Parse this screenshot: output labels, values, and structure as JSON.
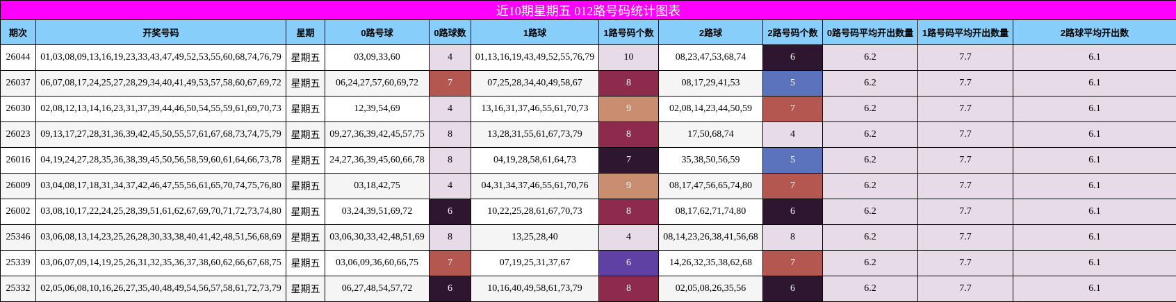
{
  "title": "近10期星期五 012路号码统计图表",
  "headers": {
    "period": "期次",
    "numbers": "开奖号码",
    "weekday": "星期",
    "road0": "0路号球",
    "road0_count": "0路球数",
    "road1": "1路球",
    "road1_count": "1路号码个数",
    "road2": "2路球",
    "road2_count": "2路号码个数",
    "avg0": "0路号码平均开出数量",
    "avg1": "1路号码平均开出数量",
    "avg2": "2路球平均开出数"
  },
  "count_colors": {
    "4": "#e6dbe6",
    "5": "#5b73bd",
    "6": "#2e1630",
    "7": "#b35750",
    "8": "#8e2a4e",
    "9": "#c98d6f",
    "10": "#e6dbe6",
    "6_r1": "#5e41a3"
  },
  "rows": [
    {
      "period": "26044",
      "numbers": "01,03,08,09,13,16,19,23,33,43,47,49,52,53,55,60,68,74,76,79",
      "weekday": "星期五",
      "road0": "03,09,33,60",
      "road0_count": "4",
      "road0_color": "#e6dbe6",
      "road1": "01,13,16,19,43,49,52,55,76,79",
      "road1_count": "10",
      "road1_color": "#e6dbe6",
      "road2": "08,23,47,53,68,74",
      "road2_count": "6",
      "road2_color": "#2e1630",
      "avg0": "6.2",
      "avg1": "7.7",
      "avg2": "6.1"
    },
    {
      "period": "26037",
      "numbers": "06,07,08,17,24,25,27,28,29,34,40,41,49,53,57,58,60,67,69,72",
      "weekday": "星期五",
      "road0": "06,24,27,57,60,69,72",
      "road0_count": "7",
      "road0_color": "#b35750",
      "road1": "07,25,28,34,40,49,58,67",
      "road1_count": "8",
      "road1_color": "#8e2a4e",
      "road2": "08,17,29,41,53",
      "road2_count": "5",
      "road2_color": "#5b73bd",
      "avg0": "6.2",
      "avg1": "7.7",
      "avg2": "6.1"
    },
    {
      "period": "26030",
      "numbers": "02,08,12,13,14,16,23,31,37,39,44,46,50,54,55,59,61,69,70,73",
      "weekday": "星期五",
      "road0": "12,39,54,69",
      "road0_count": "4",
      "road0_color": "#e6dbe6",
      "road1": "13,16,31,37,46,55,61,70,73",
      "road1_count": "9",
      "road1_color": "#c98d6f",
      "road2": "02,08,14,23,44,50,59",
      "road2_count": "7",
      "road2_color": "#b35750",
      "avg0": "6.2",
      "avg1": "7.7",
      "avg2": "6.1"
    },
    {
      "period": "26023",
      "numbers": "09,13,17,27,28,31,36,39,42,45,50,55,57,61,67,68,73,74,75,79",
      "weekday": "星期五",
      "road0": "09,27,36,39,42,45,57,75",
      "road0_count": "8",
      "road0_color": "#e6dbe6",
      "road1": "13,28,31,55,61,67,73,79",
      "road1_count": "8",
      "road1_color": "#8e2a4e",
      "road2": "17,50,68,74",
      "road2_count": "4",
      "road2_color": "#e6dbe6",
      "avg0": "6.2",
      "avg1": "7.7",
      "avg2": "6.1"
    },
    {
      "period": "26016",
      "numbers": "04,19,24,27,28,35,36,38,39,45,50,56,58,59,60,61,64,66,73,78",
      "weekday": "星期五",
      "road0": "24,27,36,39,45,60,66,78",
      "road0_count": "8",
      "road0_color": "#e6dbe6",
      "road1": "04,19,28,58,61,64,73",
      "road1_count": "7",
      "road1_color": "#2e1630",
      "road2": "35,38,50,56,59",
      "road2_count": "5",
      "road2_color": "#5b73bd",
      "avg0": "6.2",
      "avg1": "7.7",
      "avg2": "6.1"
    },
    {
      "period": "26009",
      "numbers": "03,04,08,17,18,31,34,37,42,46,47,55,56,61,65,70,74,75,76,80",
      "weekday": "星期五",
      "road0": "03,18,42,75",
      "road0_count": "4",
      "road0_color": "#e6dbe6",
      "road1": "04,31,34,37,46,55,61,70,76",
      "road1_count": "9",
      "road1_color": "#c98d6f",
      "road2": "08,17,47,56,65,74,80",
      "road2_count": "7",
      "road2_color": "#b35750",
      "avg0": "6.2",
      "avg1": "7.7",
      "avg2": "6.1"
    },
    {
      "period": "26002",
      "numbers": "03,08,10,17,22,24,25,28,39,51,61,62,67,69,70,71,72,73,74,80",
      "weekday": "星期五",
      "road0": "03,24,39,51,69,72",
      "road0_count": "6",
      "road0_color": "#2e1630",
      "road1": "10,22,25,28,61,67,70,73",
      "road1_count": "8",
      "road1_color": "#8e2a4e",
      "road2": "08,17,62,71,74,80",
      "road2_count": "6",
      "road2_color": "#2e1630",
      "avg0": "6.2",
      "avg1": "7.7",
      "avg2": "6.1"
    },
    {
      "period": "25346",
      "numbers": "03,06,08,13,14,23,25,26,28,30,33,38,40,41,42,48,51,56,68,69",
      "weekday": "星期五",
      "road0": "03,06,30,33,42,48,51,69",
      "road0_count": "8",
      "road0_color": "#e6dbe6",
      "road1": "13,25,28,40",
      "road1_count": "4",
      "road1_color": "#e6dbe6",
      "road2": "08,14,23,26,38,41,56,68",
      "road2_count": "8",
      "road2_color": "#e6dbe6",
      "avg0": "6.2",
      "avg1": "7.7",
      "avg2": "6.1"
    },
    {
      "period": "25339",
      "numbers": "03,06,07,09,14,19,25,26,31,32,35,36,37,38,60,62,66,67,68,75",
      "weekday": "星期五",
      "road0": "03,06,09,36,60,66,75",
      "road0_count": "7",
      "road0_color": "#b35750",
      "road1": "07,19,25,31,37,67",
      "road1_count": "6",
      "road1_color": "#5e41a3",
      "road2": "14,26,32,35,38,62,68",
      "road2_count": "7",
      "road2_color": "#b35750",
      "avg0": "6.2",
      "avg1": "7.7",
      "avg2": "6.1"
    },
    {
      "period": "25332",
      "numbers": "02,05,06,08,10,16,26,27,35,40,48,49,54,56,57,58,61,72,73,79",
      "weekday": "星期五",
      "road0": "06,27,48,54,57,72",
      "road0_count": "6",
      "road0_color": "#2e1630",
      "road1": "10,16,40,49,58,61,73,79",
      "road1_count": "8",
      "road1_color": "#8e2a4e",
      "road2": "02,05,08,26,35,56",
      "road2_count": "6",
      "road2_color": "#2e1630",
      "avg0": "6.2",
      "avg1": "7.7",
      "avg2": "6.1"
    }
  ]
}
